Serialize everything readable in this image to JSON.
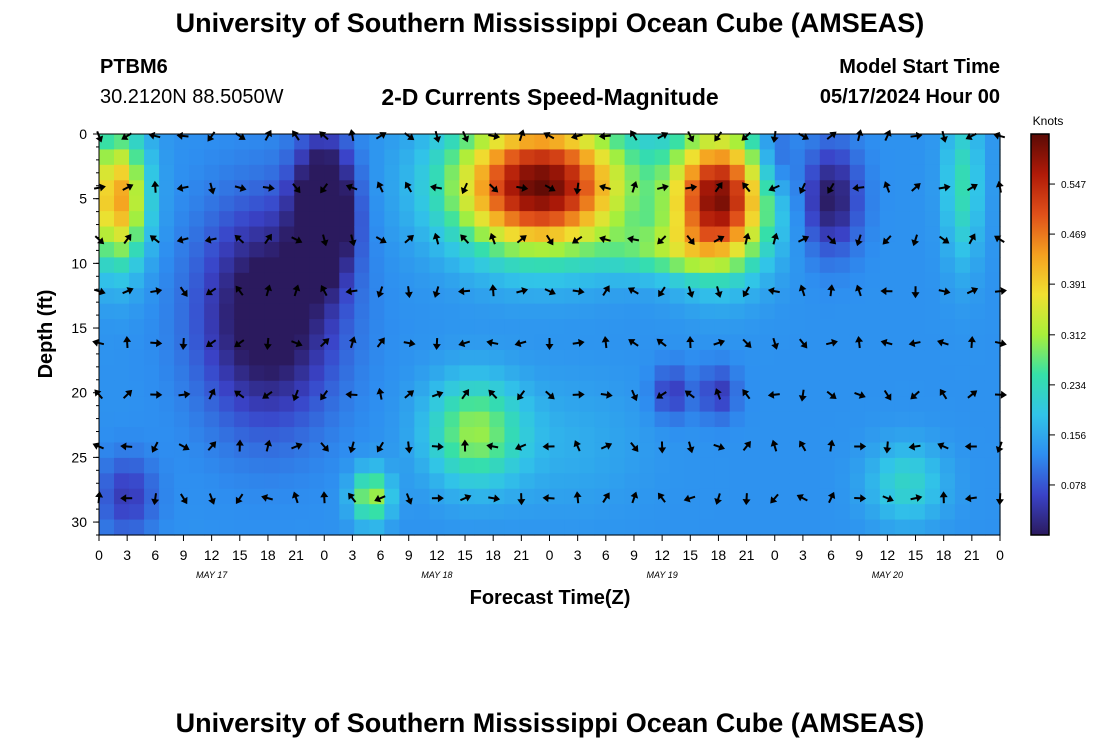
{
  "header": {
    "title": "University of Southern Mississippi Ocean Cube (AMSEAS)",
    "station": "PTBM6",
    "coords": "30.2120N  88.5050W",
    "subtitle": "2-D Currents Speed-Magnitude",
    "model_start_label": "Model Start Time",
    "model_start_value": "05/17/2024 Hour 00"
  },
  "footer": {
    "title": "University of Southern Mississippi Ocean Cube (AMSEAS)"
  },
  "colors": {
    "ramp": [
      "#2b1a5e",
      "#3a43c8",
      "#2e8ef0",
      "#31c4e8",
      "#35e0a8",
      "#a8ef3a",
      "#f0e030",
      "#f5a020",
      "#e0501a",
      "#b01a08",
      "#5a0a05"
    ]
  },
  "chart_data": {
    "type": "heatmap",
    "xlabel": "Forecast Time(Z)",
    "ylabel": "Depth (ft)",
    "x_ticks": [
      "0",
      "3",
      "6",
      "9",
      "12",
      "15",
      "18",
      "21",
      "0",
      "3",
      "6",
      "9",
      "12",
      "15",
      "18",
      "21",
      "0",
      "3",
      "6",
      "9",
      "12",
      "15",
      "18",
      "21",
      "0",
      "3",
      "6",
      "9",
      "12",
      "15",
      "18",
      "21",
      "0"
    ],
    "x_hours": [
      0,
      3,
      6,
      9,
      12,
      15,
      18,
      21,
      24,
      27,
      30,
      33,
      36,
      39,
      42,
      45,
      48,
      51,
      54,
      57,
      60,
      63,
      66,
      69,
      72,
      75,
      78,
      81,
      84,
      87,
      90,
      93,
      96
    ],
    "day_labels": [
      {
        "text": "MAY 17",
        "hour": 12
      },
      {
        "text": "MAY 18",
        "hour": 36
      },
      {
        "text": "MAY 19",
        "hour": 60
      },
      {
        "text": "MAY 20",
        "hour": 84
      }
    ],
    "y_ticks": [
      "0",
      "5",
      "10",
      "15",
      "20",
      "25",
      "30"
    ],
    "y_values": [
      0,
      5,
      10,
      15,
      20,
      25,
      30
    ],
    "ylim": [
      0,
      31
    ],
    "xlim": [
      0,
      96
    ],
    "colorbar": {
      "label": "Knots",
      "ticks": [
        "0.547",
        "0.469",
        "0.391",
        "0.312",
        "0.234",
        "0.156",
        "0.078"
      ],
      "values": [
        0.547,
        0.469,
        0.391,
        0.312,
        0.234,
        0.156,
        0.078
      ],
      "range": [
        0,
        0.625
      ]
    },
    "arrow_depths_ft": [
      0,
      4,
      8,
      12,
      16,
      20,
      24,
      28
    ],
    "arrow_step_hours": 3,
    "speed_features": [
      {
        "hour": 2,
        "depth": 5,
        "speed": 0.44,
        "sx": 3,
        "sy": 5
      },
      {
        "hour": 24,
        "depth": 6,
        "speed": -0.12,
        "sx": 3,
        "sy": 5
      },
      {
        "hour": 47,
        "depth": 4,
        "speed": 0.62,
        "sx": 9,
        "sy": 5
      },
      {
        "hour": 66,
        "depth": 5,
        "speed": 0.6,
        "sx": 5,
        "sy": 5
      },
      {
        "hour": 60,
        "depth": 9,
        "speed": 0.24,
        "sx": 6,
        "sy": 2
      },
      {
        "hour": 40,
        "depth": 23,
        "speed": 0.3,
        "sx": 5,
        "sy": 4
      },
      {
        "hour": 29,
        "depth": 28,
        "speed": 0.32,
        "sx": 2,
        "sy": 2
      },
      {
        "hour": 18,
        "depth": 14,
        "speed": -0.04,
        "sx": 7,
        "sy": 8
      },
      {
        "hour": 78,
        "depth": 5,
        "speed": 0.0,
        "sx": 3,
        "sy": 4
      },
      {
        "hour": 92,
        "depth": 4,
        "speed": 0.24,
        "sx": 2,
        "sy": 6
      },
      {
        "hour": 86,
        "depth": 27,
        "speed": 0.22,
        "sx": 4,
        "sy": 3
      },
      {
        "hour": 61,
        "depth": 20,
        "speed": 0.05,
        "sx": 2,
        "sy": 2
      },
      {
        "hour": 66,
        "depth": 20,
        "speed": 0.05,
        "sx": 2,
        "sy": 2
      },
      {
        "hour": 72,
        "depth": 2,
        "speed": 0.05,
        "sx": 2,
        "sy": 3
      },
      {
        "hour": 3,
        "depth": 28,
        "speed": 0.05,
        "sx": 3,
        "sy": 3
      },
      {
        "hour": 50,
        "depth": 24,
        "speed": 0.16,
        "sx": 8,
        "sy": 5
      }
    ],
    "base_speed": 0.13
  }
}
